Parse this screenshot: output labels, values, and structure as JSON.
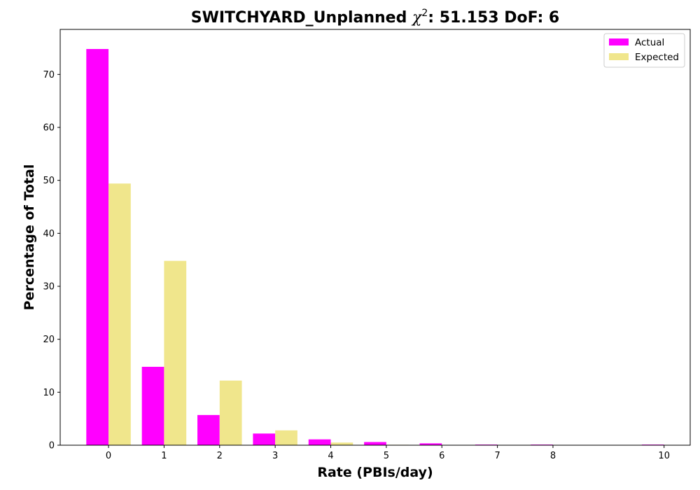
{
  "chart_data": {
    "type": "bar",
    "title": {
      "prefix": "SWITCHYARD_Unplanned ",
      "chi_symbol": "χ",
      "chi_exponent": "2",
      "suffix": ": 51.153 DoF: 6"
    },
    "xlabel": "Rate (PBIs/day)",
    "ylabel": "Percentage of Total",
    "xlim": [
      -0.87,
      10.47
    ],
    "ylim": [
      0,
      78.5
    ],
    "x_ticks": [
      0,
      1,
      2,
      3,
      4,
      5,
      6,
      7,
      8,
      10
    ],
    "y_ticks": [
      0,
      10,
      20,
      30,
      40,
      50,
      60,
      70
    ],
    "bar_width": 0.4,
    "legend_position": "top-right",
    "colors": {
      "actual": "#ff00ff",
      "expected": "#f0e68c"
    },
    "series": [
      {
        "name": "Actual",
        "x": [
          0,
          1,
          2,
          3,
          4,
          5,
          6,
          7,
          8,
          10
        ],
        "values": [
          74.8,
          14.8,
          5.7,
          2.2,
          1.1,
          0.6,
          0.35,
          0.12,
          0.12,
          0.12
        ]
      },
      {
        "name": "Expected",
        "x": [
          0,
          1,
          2,
          3,
          4,
          5,
          6,
          7,
          8,
          10
        ],
        "values": [
          49.4,
          34.8,
          12.2,
          2.8,
          0.5,
          0.08,
          0.01,
          0.0,
          0.0,
          0.0
        ]
      }
    ]
  }
}
